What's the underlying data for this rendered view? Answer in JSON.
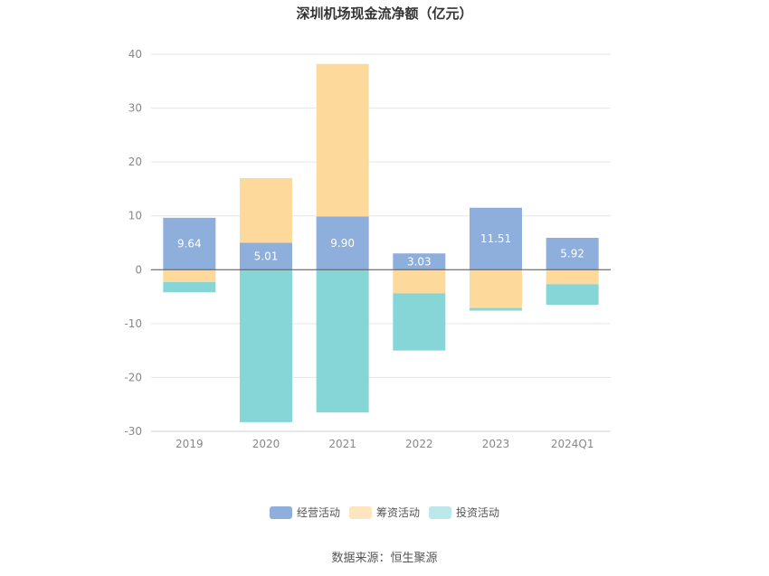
{
  "chart_data": {
    "type": "bar",
    "stacked": true,
    "title": "深圳机场现金流净额（亿元）",
    "categories": [
      "2019",
      "2020",
      "2021",
      "2022",
      "2023",
      "2024Q1"
    ],
    "series": [
      {
        "name": "经营活动",
        "color": "#8eaedb",
        "values": [
          9.64,
          5.01,
          9.9,
          3.03,
          11.51,
          5.92
        ],
        "labels": [
          "9.64",
          "5.01",
          "9.90",
          "3.03",
          "11.51",
          "5.92"
        ]
      },
      {
        "name": "筹资活动",
        "color": "#fdd99b",
        "values": [
          -2.3,
          12.0,
          28.3,
          -4.4,
          -7.1,
          -2.7
        ]
      },
      {
        "name": "投资活动",
        "color": "#86d6d8",
        "values": [
          -1.9,
          -28.3,
          -26.5,
          -10.6,
          -0.5,
          -3.8
        ]
      }
    ],
    "legend_colors": [
      "#8eaedb",
      "#fde6bf",
      "#bde8ea"
    ],
    "ylim": [
      -30,
      40
    ],
    "yticks": [
      "-30",
      "-20",
      "-10",
      "0",
      "10",
      "20",
      "30",
      "40"
    ],
    "grid": true,
    "legend_position": "bottom"
  },
  "source": "数据来源：恒生聚源"
}
